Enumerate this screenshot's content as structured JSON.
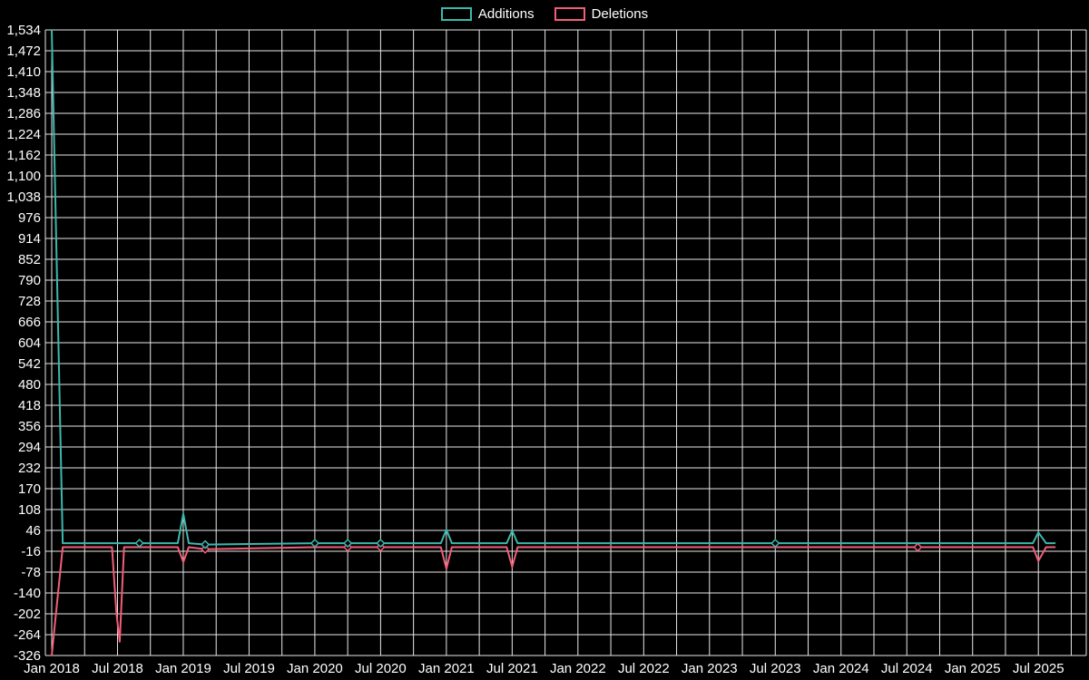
{
  "chart_data": {
    "type": "line",
    "title": "",
    "background": "#000000",
    "text_color": "#ffffff",
    "grid_color": "#e8e8e8",
    "legend_position": "top",
    "grid": {
      "v_step_months": 3
    },
    "x_axis": {
      "labels": [
        {
          "text": "Jan 2018",
          "month": 0
        },
        {
          "text": "Jul 2018",
          "month": 6
        },
        {
          "text": "Jan 2019",
          "month": 12
        },
        {
          "text": "Jul 2019",
          "month": 18
        },
        {
          "text": "Jan 2020",
          "month": 24
        },
        {
          "text": "Jul 2020",
          "month": 30
        },
        {
          "text": "Jan 2021",
          "month": 36
        },
        {
          "text": "Jul 2021",
          "month": 42
        },
        {
          "text": "Jan 2022",
          "month": 48
        },
        {
          "text": "Jul 2022",
          "month": 54
        },
        {
          "text": "Jan 2023",
          "month": 60
        },
        {
          "text": "Jul 2023",
          "month": 66
        },
        {
          "text": "Jan 2024",
          "month": 72
        },
        {
          "text": "Jul 2024",
          "month": 78
        },
        {
          "text": "Jan 2025",
          "month": 84
        },
        {
          "text": "Jul 2025",
          "month": 90
        }
      ]
    },
    "y_axis": {
      "min": -326,
      "max": 1534,
      "step": 62,
      "tick_labels": [
        "1,534",
        "1,472",
        "1,410",
        "1,348",
        "1,286",
        "1,224",
        "1,162",
        "1,100",
        "1,038",
        "976",
        "914",
        "852",
        "790",
        "728",
        "666",
        "604",
        "542",
        "480",
        "418",
        "356",
        "294",
        "232",
        "170",
        "108",
        "46",
        "-16",
        "-78",
        "-140",
        "-202",
        "-264",
        "-326"
      ]
    },
    "series": [
      {
        "name": "Additions",
        "color": "#3bb8ae",
        "points": [
          [
            0,
            1534
          ],
          [
            1,
            8
          ],
          [
            5.5,
            8
          ],
          [
            6.5,
            8
          ],
          [
            8,
            8
          ],
          [
            11.5,
            8
          ],
          [
            12,
            95
          ],
          [
            12.5,
            8
          ],
          [
            14,
            4
          ],
          [
            24,
            8
          ],
          [
            27,
            8
          ],
          [
            30,
            8
          ],
          [
            35.5,
            8
          ],
          [
            36,
            48
          ],
          [
            36.5,
            8
          ],
          [
            41.5,
            8
          ],
          [
            42,
            45
          ],
          [
            42.5,
            8
          ],
          [
            66,
            8
          ],
          [
            79,
            8
          ],
          [
            89.5,
            8
          ],
          [
            90,
            40
          ],
          [
            90.7,
            8
          ],
          [
            91.5,
            8
          ]
        ],
        "markers": [
          [
            8,
            8
          ],
          [
            14,
            4
          ],
          [
            24,
            8
          ],
          [
            27,
            8
          ],
          [
            30,
            8
          ],
          [
            66,
            8
          ]
        ]
      },
      {
        "name": "Deletions",
        "color": "#f25e78",
        "points": [
          [
            0,
            -326
          ],
          [
            1,
            -4
          ],
          [
            5.5,
            -4
          ],
          [
            5.9,
            -200
          ],
          [
            6.2,
            -285
          ],
          [
            6.6,
            -4
          ],
          [
            8,
            -4
          ],
          [
            11.5,
            -4
          ],
          [
            12,
            -48
          ],
          [
            12.5,
            -4
          ],
          [
            14,
            -10
          ],
          [
            24,
            -4
          ],
          [
            27,
            -4
          ],
          [
            30,
            -4
          ],
          [
            35.5,
            -4
          ],
          [
            36,
            -68
          ],
          [
            36.5,
            -4
          ],
          [
            41.5,
            -4
          ],
          [
            42,
            -62
          ],
          [
            42.5,
            -4
          ],
          [
            66,
            -4
          ],
          [
            79,
            -4
          ],
          [
            89.5,
            -4
          ],
          [
            90,
            -45
          ],
          [
            90.7,
            -4
          ],
          [
            91.5,
            -4
          ]
        ],
        "markers": [
          [
            14,
            -10
          ],
          [
            27,
            -4
          ],
          [
            30,
            -4
          ],
          [
            79,
            -4
          ]
        ]
      }
    ]
  }
}
